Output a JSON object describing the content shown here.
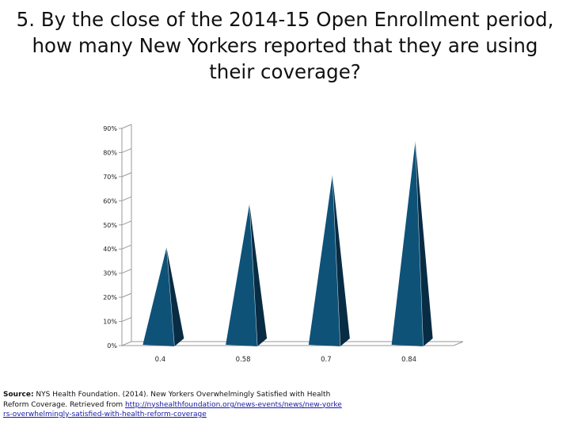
{
  "slide": {
    "title": "5. By the close of the 2014-15 Open Enrollment period, how many New Yorkers reported that they are using their coverage?"
  },
  "source": {
    "label": "Source:",
    "text": " NYS Health Foundation. (2014). New Yorkers Overwhelmingly Satisfied with Health Reform Coverage. Retrieved from ",
    "link": "http://nyshealthfoundation.org/news-events/news/new-yorkers-overwhelmingly-satisfied-with-health-reform-coverage"
  },
  "colors": {
    "pyramid_front": "#0e5278",
    "pyramid_side": "#082c44",
    "axis": "#9a9a9a"
  },
  "chart_data": {
    "type": "bar",
    "shape": "pyramid-3d",
    "categories": [
      "0.4",
      "0.58",
      "0.7",
      "0.84"
    ],
    "values": [
      0.4,
      0.58,
      0.7,
      0.84
    ],
    "ylim": [
      0,
      0.9
    ],
    "yticks": [
      "0%",
      "10%",
      "20%",
      "30%",
      "40%",
      "50%",
      "60%",
      "70%",
      "80%",
      "90%"
    ],
    "title": "",
    "xlabel": "",
    "ylabel": "",
    "grid": false,
    "legend": "none"
  }
}
